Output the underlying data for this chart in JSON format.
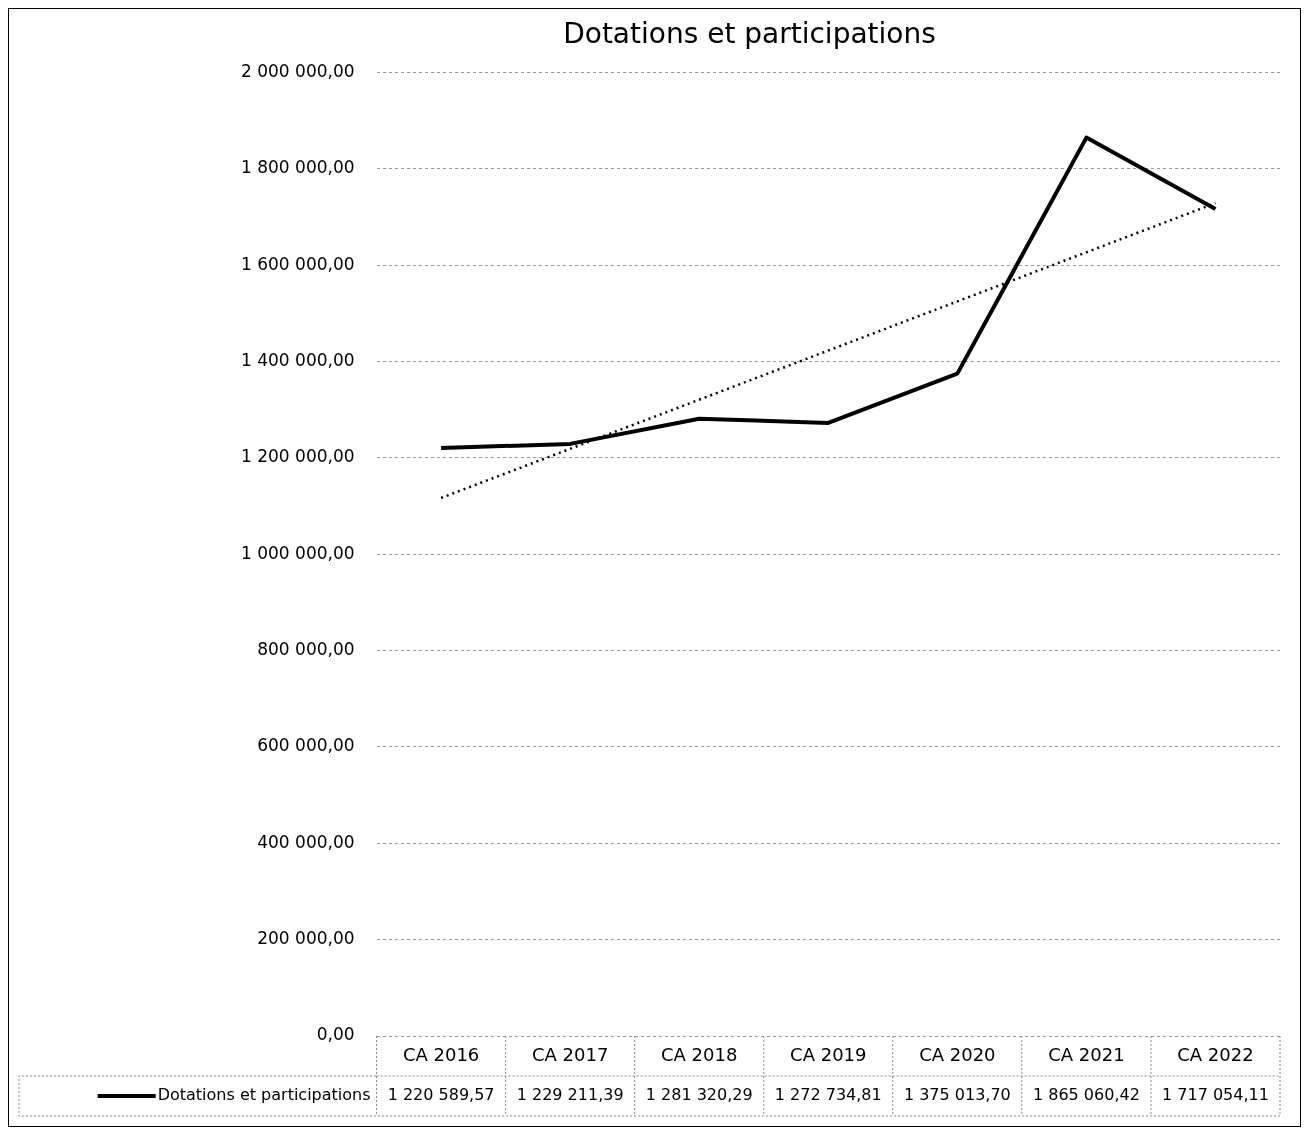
{
  "chart_data": {
    "type": "line",
    "title": "Dotations et participations",
    "categories": [
      "CA 2016",
      "CA 2017",
      "CA 2018",
      "CA 2019",
      "CA 2020",
      "CA 2021",
      "CA 2022"
    ],
    "series": [
      {
        "name": "Dotations et participations",
        "color": "#000000",
        "values": [
          1220589.57,
          1229211.39,
          1281320.29,
          1272734.81,
          1375013.7,
          1865060.42,
          1717054.11
        ],
        "value_labels": [
          "1 220 589,57",
          "1 229 211,39",
          "1 281 320,29",
          "1 272 734,81",
          "1 375 013,70",
          "1 865 060,42",
          "1 717 054,11"
        ]
      },
      {
        "type": "line",
        "x": [
          "CA 2016",
          "CA 2022"
        ],
        "color": "#000000",
        "line_style": "dotted",
        "values": [
          1117000,
          1729000
        ]
      }
    ],
    "ylim": [
      0,
      2000000
    ],
    "yticks": [
      {
        "value": 0,
        "label": "0,00"
      },
      {
        "value": 200000,
        "label": "200 000,00"
      },
      {
        "value": 400000,
        "label": "400 000,00"
      },
      {
        "value": 600000,
        "label": "600 000,00"
      },
      {
        "value": 800000,
        "label": "800 000,00"
      },
      {
        "value": 1000000,
        "label": "1 000 000,00"
      },
      {
        "value": 1200000,
        "label": "1 200 000,00"
      },
      {
        "value": 1400000,
        "label": "1 400 000,00"
      },
      {
        "value": 1600000,
        "label": "1 600 000,00"
      },
      {
        "value": 1800000,
        "label": "1 800 000,00"
      },
      {
        "value": 2000000,
        "label": "2 000 000,00"
      }
    ],
    "grid": "y",
    "legend": "bottom",
    "marker": "none"
  }
}
